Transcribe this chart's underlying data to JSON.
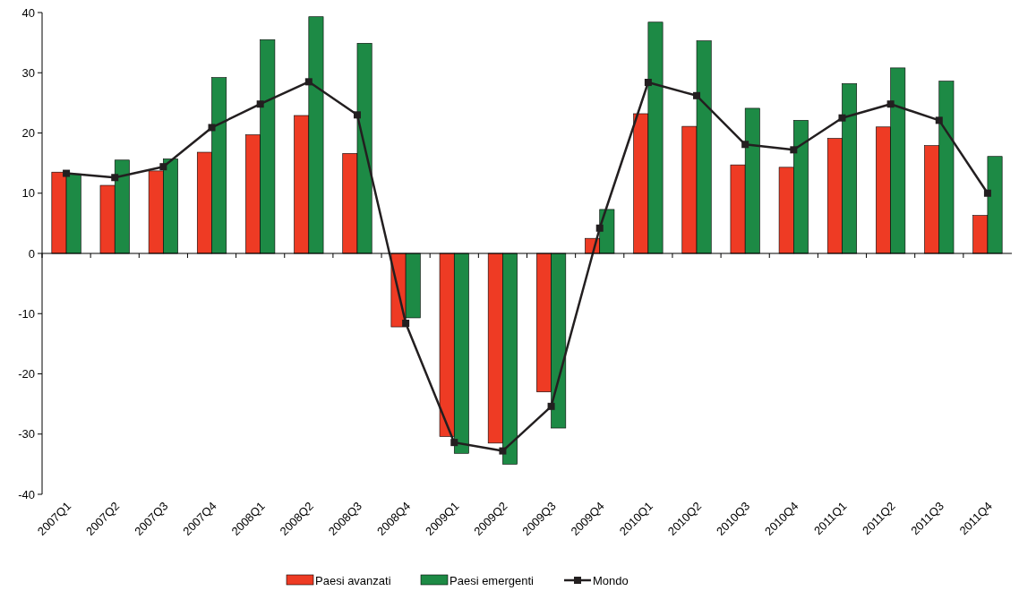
{
  "chart_data": {
    "type": "bar",
    "categories": [
      "2007Q1",
      "2007Q2",
      "2007Q3",
      "2007Q4",
      "2008Q1",
      "2008Q2",
      "2008Q3",
      "2008Q4",
      "2009Q1",
      "2009Q2",
      "2009Q3",
      "2009Q4",
      "2010Q1",
      "2010Q2",
      "2010Q3",
      "2010Q4",
      "2011Q1",
      "2011Q2",
      "2011Q3",
      "2011Q4"
    ],
    "series": [
      {
        "name": "Paesi avanzati",
        "color": "#ee3b24",
        "values": [
          13.5,
          11.3,
          13.7,
          16.8,
          19.7,
          22.9,
          16.6,
          -12.2,
          -30.4,
          -31.5,
          -23,
          2.5,
          23.2,
          21.1,
          14.7,
          14.3,
          19.1,
          21.0,
          17.9,
          6.3
        ]
      },
      {
        "name": "Paesi emergenti",
        "color": "#1d8a45",
        "values": [
          13.2,
          15.5,
          15.7,
          29.2,
          35.5,
          39.3,
          34.9,
          -10.7,
          -33.2,
          -35.0,
          -29.0,
          7.3,
          38.4,
          35.3,
          24.1,
          22.1,
          28.2,
          30.8,
          28.6,
          16.1
        ]
      },
      {
        "name": "Mondo",
        "type": "line",
        "color": "#231f20",
        "values": [
          13.3,
          12.6,
          14.4,
          20.9,
          24.8,
          28.5,
          23.0,
          -11.6,
          -31.4,
          -32.8,
          -25.4,
          4.2,
          28.4,
          26.2,
          18.1,
          17.2,
          22.5,
          24.8,
          22.1,
          10.0
        ]
      }
    ],
    "ylim": [
      -40,
      40
    ],
    "yticks": [
      -40,
      -30,
      -20,
      -10,
      0,
      10,
      20,
      30,
      40
    ],
    "legend": "bottom",
    "marker": "square",
    "line_style": "solid"
  }
}
